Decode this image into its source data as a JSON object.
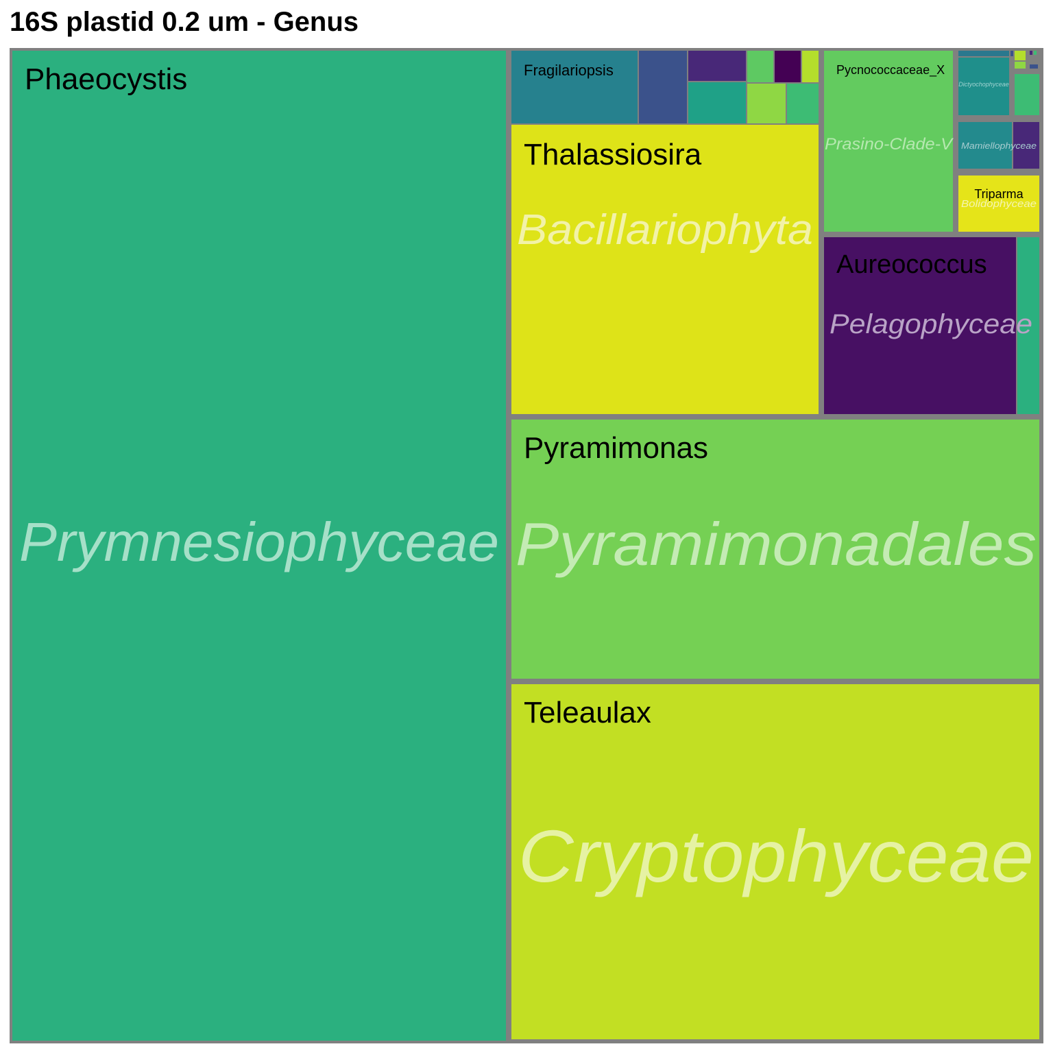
{
  "title": "16S plastid 0.2 um - Genus",
  "colors": {
    "border": "#808080",
    "prymnesiophyceae": "#2BB07F",
    "pyramimonadales": "#75D054",
    "cryptophyceae": "#C2DF23",
    "bacillariophyta": "#DEE318",
    "pelagophyceae": "#471063",
    "prasino_clade_v": "#63CB5F",
    "bolidophyceae": "#E5E419",
    "mamiellophyceae": "#238A8D",
    "dictyochophyceae": "#1F8F8B",
    "fragilariopsis": "#26818E",
    "minor_1": "#3B528B",
    "minor_2": "#482878",
    "minor_3": "#1FA187",
    "minor_4": "#5EC962",
    "minor_5": "#8FD744",
    "minor_6": "#440154",
    "minor_7": "#B4DE2C",
    "minor_8": "#3DBC74",
    "minor_9": "#2A788E"
  },
  "chart_data": {
    "type": "treemap",
    "title": "16S plastid 0.2 um - Genus",
    "groups": [
      {
        "name": "Prymnesiophyceae",
        "color": "#2BB07F",
        "genera": [
          {
            "name": "Phaeocystis",
            "value": 1045
          }
        ]
      },
      {
        "name": "Pyramimonadales",
        "color": "#75D054",
        "genera": [
          {
            "name": "Pyramimonas",
            "value": 291
          }
        ]
      },
      {
        "name": "Cryptophyceae",
        "color": "#C2DF23",
        "genera": [
          {
            "name": "Teleaulax",
            "value": 396
          }
        ]
      },
      {
        "name": "Bacillariophyta",
        "color": "#DEE318",
        "genera": [
          {
            "name": "Thalassiosira",
            "value": 238
          },
          {
            "name": "Fragilariopsis",
            "value": 20
          },
          {
            "name": "",
            "value": 8
          },
          {
            "name": "",
            "value": 4
          },
          {
            "name": "",
            "value": 6
          },
          {
            "name": "",
            "value": 2
          },
          {
            "name": "",
            "value": 2
          },
          {
            "name": "",
            "value": 1
          },
          {
            "name": "",
            "value": 3
          },
          {
            "name": "",
            "value": 2
          }
        ]
      },
      {
        "name": "Prasino-Clade-V",
        "color": "#63CB5F",
        "genera": [
          {
            "name": "Pycnococcaceae_X",
            "value": 50
          }
        ]
      },
      {
        "name": "Pelagophyceae",
        "color": "#471063",
        "genera": [
          {
            "name": "Aureococcus",
            "value": 72
          },
          {
            "name": "",
            "value": 9
          }
        ]
      },
      {
        "name": "Bolidophyceae",
        "color": "#E5E419",
        "genera": [
          {
            "name": "Triparma",
            "value": 9.5
          }
        ]
      },
      {
        "name": "Mamiellophyceae",
        "color": "#238A8D",
        "genera": [
          {
            "name": "",
            "value": 5
          },
          {
            "name": "",
            "value": 2
          }
        ]
      },
      {
        "name": "Dictyochophyceae",
        "color": "#1F8F8B",
        "genera": [
          {
            "name": "",
            "value": 5
          }
        ]
      }
    ]
  }
}
